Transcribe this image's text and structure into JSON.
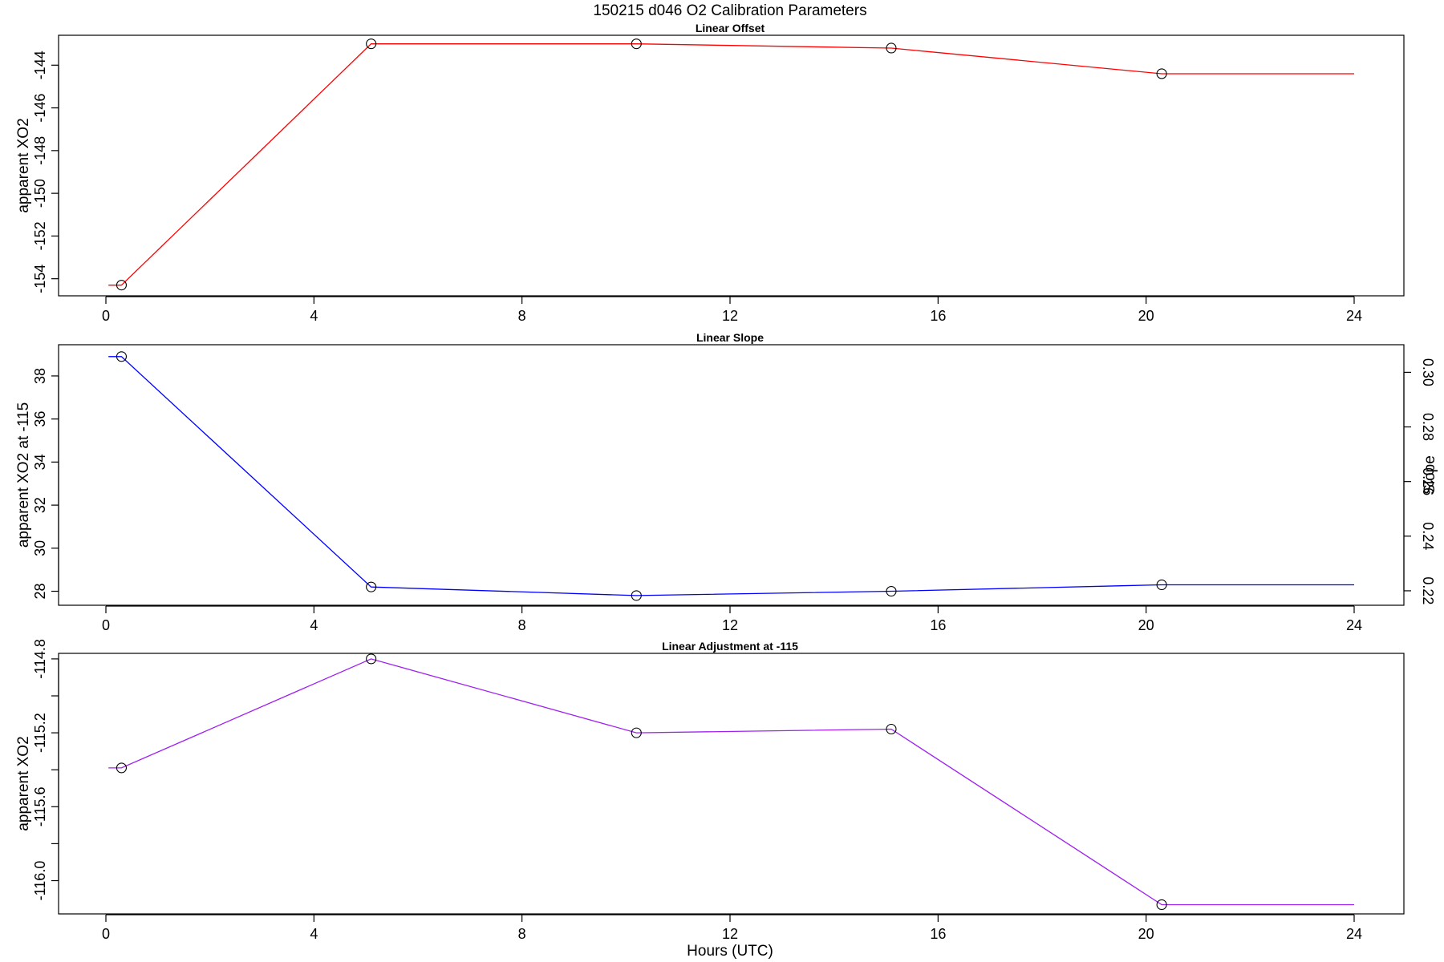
{
  "figure_title": "150215   d046   O2 Calibration Parameters",
  "x_axis_title": "Hours (UTC)",
  "chart_data": [
    {
      "type": "line",
      "title": "Linear Offset",
      "xlabel": "",
      "ylabel": "apparent XO2",
      "color": "#ff0000",
      "xlim": [
        0,
        24
      ],
      "xticks": [
        0,
        4,
        8,
        12,
        16,
        20,
        24
      ],
      "ylim": [
        -154.8,
        -142.6
      ],
      "yticks": [
        -154,
        -152,
        -150,
        -148,
        -146,
        -144
      ],
      "ytick_labels": [
        "-154",
        "-152",
        "-150",
        "-148",
        "-146",
        "-144"
      ],
      "x": [
        0.3,
        5.1,
        10.2,
        15.1,
        20.3
      ],
      "y": [
        -154.3,
        -143.0,
        -143.0,
        -143.2,
        -144.4
      ],
      "line_start_x": 0.05,
      "line_end_x": 24
    },
    {
      "type": "line",
      "title": "Linear Slope",
      "xlabel": "",
      "ylabel": "apparent XO2 at -115",
      "ylabel_right": "Slope",
      "color": "#0000ff",
      "xlim": [
        0,
        24
      ],
      "xticks": [
        0,
        4,
        8,
        12,
        16,
        20,
        24
      ],
      "ylim": [
        27.35,
        39.45
      ],
      "yticks": [
        28,
        30,
        32,
        34,
        36,
        38
      ],
      "ytick_labels": [
        "28",
        "30",
        "32",
        "34",
        "36",
        "38"
      ],
      "right_ylim": [
        0.2147,
        0.3101
      ],
      "right_yticks": [
        0.22,
        0.24,
        0.26,
        0.28,
        0.3
      ],
      "right_ytick_labels": [
        "0.22",
        "0.24",
        "0.26",
        "0.28",
        "0.30"
      ],
      "x": [
        0.3,
        5.1,
        10.2,
        15.1,
        20.3
      ],
      "y": [
        38.9,
        28.2,
        27.8,
        28.0,
        28.3
      ],
      "line_start_x": 0.05,
      "line_end_x": 24
    },
    {
      "type": "line",
      "title": "Linear Adjustment at -115",
      "xlabel": "Hours (UTC)",
      "ylabel": "apparent XO2",
      "color": "#a020f0",
      "xlim": [
        0,
        24
      ],
      "xticks": [
        0,
        4,
        8,
        12,
        16,
        20,
        24
      ],
      "ylim": [
        -116.18,
        -114.77
      ],
      "yticks": [
        -116.0,
        -115.8,
        -115.6,
        -115.4,
        -115.2,
        -115.0,
        -114.8
      ],
      "ytick_labels": [
        "-116.0",
        "",
        "-115.6",
        "",
        "-115.2",
        "",
        "-114.8"
      ],
      "x": [
        0.3,
        5.1,
        10.2,
        15.1,
        20.3
      ],
      "y": [
        -115.39,
        -114.8,
        -115.2,
        -115.18,
        -116.13
      ],
      "line_start_x": 0.05,
      "line_end_x": 24
    }
  ]
}
